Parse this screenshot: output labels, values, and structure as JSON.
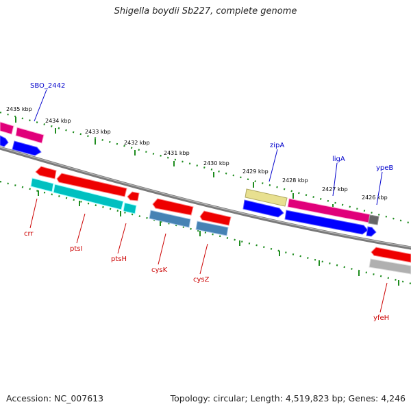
{
  "title": "Shigella boydii Sb227, complete genome",
  "footer": {
    "accession": "Accession: NC_007613",
    "summary": "Topology: circular; Length: 4,519,823 bp; Genes: 4,246"
  },
  "colors": {
    "backbone": "#808080",
    "ticks": "#1e8c1e",
    "label_forward": "#0000cc",
    "label_reverse": "#cc0000"
  },
  "ticks": [
    {
      "label": "2435 kbp"
    },
    {
      "label": "2434 kbp"
    },
    {
      "label": "2433 kbp"
    },
    {
      "label": "2432 kbp"
    },
    {
      "label": "2431 kbp"
    },
    {
      "label": "2430 kbp"
    },
    {
      "label": "2429 kbp"
    },
    {
      "label": "2428 kbp"
    },
    {
      "label": "2427 kbp"
    },
    {
      "label": "2426 kbp"
    }
  ],
  "genes_top": [
    {
      "label": "SBO_2442",
      "color": "#e0007a"
    },
    {
      "label": "zipA",
      "color": "#e8e090"
    },
    {
      "label": "ligA",
      "color": "#e0007a"
    },
    {
      "label": "ypeB",
      "color": "#666666"
    }
  ],
  "genes_bottom": [
    {
      "label": "crr",
      "color": "#00c0c0"
    },
    {
      "label": "ptsI",
      "color": "#00c0c0"
    },
    {
      "label": "ptsH",
      "color": "#00c0c0"
    },
    {
      "label": "cysK",
      "color": "#4682b4"
    },
    {
      "label": "cysZ",
      "color": "#4682b4"
    },
    {
      "label": "yfeH",
      "color": "#b0b0b0"
    }
  ]
}
